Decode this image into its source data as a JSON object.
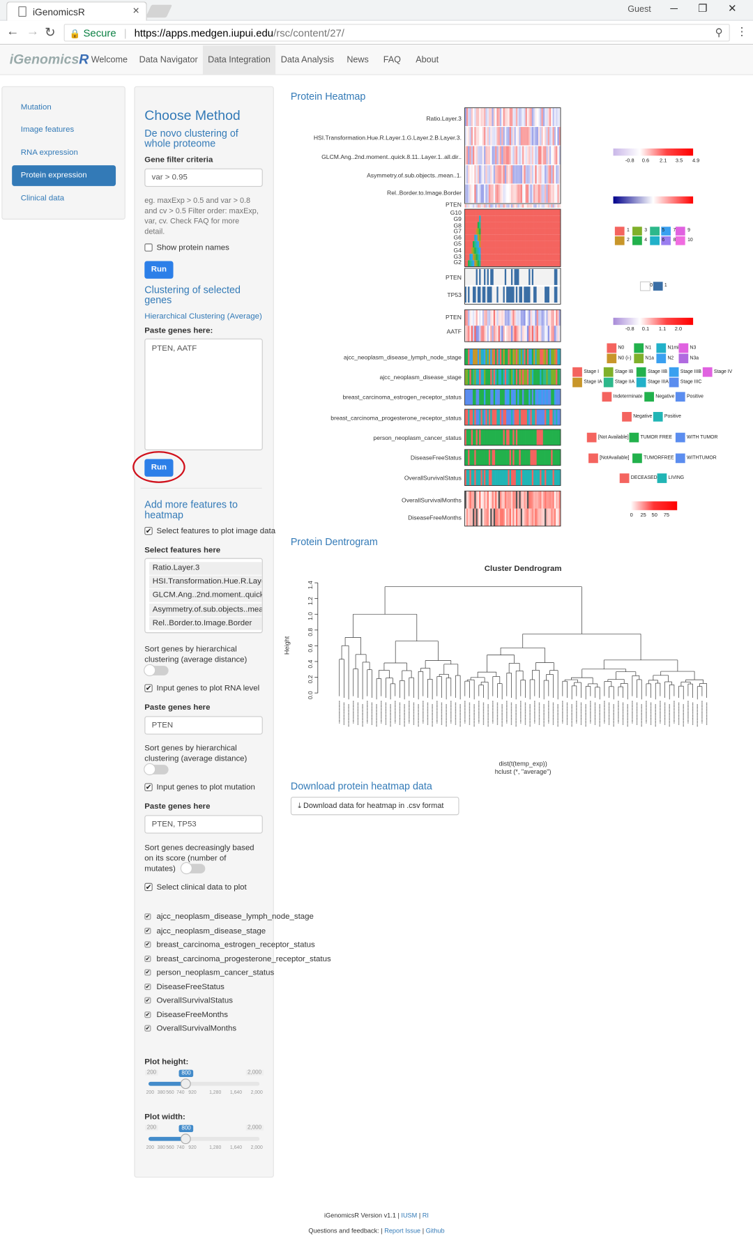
{
  "browser": {
    "tab_title": "iGenomicsR",
    "user": "Guest",
    "secure": "Secure",
    "url_host": "https://apps.medgen.iupui.edu",
    "url_path": "/rsc/content/27/"
  },
  "app": {
    "brand_prefix": "iGenomics",
    "brand_suffix": "R",
    "nav": [
      "Welcome",
      "Data Navigator",
      "Data Integration",
      "Data Analysis",
      "News",
      "FAQ",
      "About"
    ],
    "active_nav": "Data Integration"
  },
  "left_menu": {
    "items": [
      "Mutation",
      "Image features",
      "RNA expression",
      "Protein expression",
      "Clinical data"
    ],
    "active": "Protein expression"
  },
  "panel": {
    "title": "Choose Method",
    "denovo_line1": "De novo clustering of",
    "denovo_line2": "whole proteome",
    "gene_filter_label": "Gene filter criteria",
    "gene_filter_value": "var > 0.95",
    "help": [
      "eg. maxExp > 0.5 and var > 0.8",
      "and cv > 0.5 Filter order: maxExp,",
      "var, cv. Check FAQ for more",
      "detail."
    ],
    "show_names": "Show protein names",
    "run": "Run",
    "cluster_sel1": "Clustering of selected",
    "cluster_sel2": "genes",
    "hier_link": "Hierarchical Clustering (Average)",
    "paste_label": "Paste genes here:",
    "paste_value": "PTEN, AATF",
    "add_more1": "Add more features to",
    "add_more2": "heatmap",
    "select_image": "Select features to plot image data",
    "select_here": "Select features here",
    "features": [
      "Ratio.Layer.3",
      "HSI.Transformation.Hue.R.Layer",
      "GLCM.Ang..2nd.moment..quick.",
      "Asymmetry.of.sub.objects..mean",
      "Rel..Border.to.Image.Border"
    ],
    "sort1a": "Sort genes by hierarchical",
    "sort1b": "clustering (average distance)",
    "input_rna": "Input genes to plot RNA level",
    "paste2": "Paste genes here",
    "rna_value": "PTEN",
    "sort2a": "Sort genes by hierarchical",
    "sort2b": "clustering (average distance)",
    "input_mut": "Input genes to plot mutation",
    "paste3": "Paste genes here",
    "mut_value": "PTEN, TP53",
    "sort3a": "Sort genes decreasingly based",
    "sort3b": "on its score (number of",
    "sort3c": "mutates)",
    "select_clinical": "Select clinical data to plot",
    "clinical": [
      "ajcc_neoplasm_disease_lymph_node_stage",
      "ajcc_neoplasm_disease_stage",
      "breast_carcinoma_estrogen_receptor_status",
      "breast_carcinoma_progesterone_receptor_status",
      "person_neoplasm_cancer_status",
      "DiseaseFreeStatus",
      "OverallSurvivalStatus",
      "DiseaseFreeMonths",
      "OverallSurvivalMonths"
    ],
    "plot_height": "Plot height:",
    "plot_width": "Plot width:",
    "slider": {
      "min": "200",
      "max": "2,000",
      "value": "800",
      "value_num": 800,
      "min_num": 200,
      "max_num": 2000,
      "ticks": [
        "200",
        "380",
        "560",
        "740",
        "920",
        "1,280",
        "1,640",
        "2,000"
      ]
    }
  },
  "main": {
    "heatmap_title": "Protein Heatmap",
    "image_rows": [
      "Ratio.Layer.3",
      "HSI.Transformation.Hue.R.Layer.1.G.Layer.2.B.Layer.3.",
      "GLCM.Ang..2nd.moment..quick.8.11..Layer.1..all.dir..",
      "Asymmetry.of.sub.objects..mean..1.",
      "Rel..Border.to.Image.Border"
    ],
    "pten_row": "PTEN",
    "groups": [
      "G10",
      "G9",
      "G8",
      "G7",
      "G6",
      "G5",
      "G4",
      "G3",
      "G2"
    ],
    "mut_rows": [
      "PTEN",
      "TP53"
    ],
    "rna_rows": [
      "PTEN",
      "AATF"
    ],
    "clin_rows": [
      "ajcc_neoplasm_disease_lymph_node_stage",
      "ajcc_neoplasm_disease_stage",
      "breast_carcinoma_estrogen_receptor_status",
      "breast_carcinoma_progesterone_receptor_status",
      "person_neoplasm_cancer_status",
      "DiseaseFreeStatus",
      "OverallSurvivalStatus"
    ],
    "months_rows": [
      "OverallSurvivalMonths",
      "DiseaseFreeMonths"
    ],
    "leg_img_ticks": [
      "-0.8",
      "0.6",
      "2.1",
      "3.5",
      "4.9"
    ],
    "leg_mut": [
      "0",
      "1"
    ],
    "leg_rna_ticks": [
      "-0.8",
      "0.1",
      "1.1",
      "2.0"
    ],
    "leg_groups": [
      "1",
      "2",
      "3",
      "4",
      "5",
      "6",
      "7",
      "8",
      "9",
      "10"
    ],
    "leg_lymph": [
      "N0",
      "N0 (i-)",
      "N1",
      "N1a",
      "N1mi",
      "N2",
      "N3",
      "N3a"
    ],
    "leg_stage": [
      "Stage I",
      "Stage IA",
      "Stage IB",
      "Stage IIA",
      "Stage IIB",
      "Stage IIIA",
      "Stage IIIB",
      "Stage IIIC",
      "Stage IV"
    ],
    "leg_status": [
      "Indeterminate",
      "Negative",
      "Positive"
    ],
    "leg_pr": [
      "Negative",
      "Positive"
    ],
    "leg_cancer": [
      "[Not Available]",
      "TUMOR FREE",
      "WITH TUMOR"
    ],
    "leg_dfs": [
      "[NotAvailable]",
      "TUMORFREE",
      "WITHTUMOR"
    ],
    "leg_os": [
      "DECEASED",
      "LIVING"
    ],
    "leg_months_ticks": [
      "0",
      "25",
      "50",
      "75"
    ],
    "dend_section": "Protein Dentrogram",
    "dend_title": "Cluster Dendrogram",
    "dend_ylabel": "Height",
    "dend_yticks": [
      "0.0",
      "0.2",
      "0.4",
      "0.6",
      "0.8",
      "1.0",
      "1.2",
      "1.4"
    ],
    "dend_xlabel1": "dist(t(temp_exp))",
    "dend_xlabel2": "hclust (*, \"average\")",
    "download_title": "Download protein heatmap data",
    "download_btn": "Download data for heatmap in .csv format"
  },
  "footer": {
    "line1_a": "iGenomicsR Version v1.1 | ",
    "iusm": "IUSM",
    "sep": " | ",
    "ri": "RI",
    "line2_a": "Questions and feedback: | ",
    "report": "Report Issue",
    "sep2": " | ",
    "github": "Github"
  },
  "colors": {
    "accent": "#337ab7",
    "button": "#2c7fe8",
    "red": "#f4645f",
    "green": "#22b14c",
    "blue": "#5b8def",
    "teal": "#21b5b5"
  }
}
